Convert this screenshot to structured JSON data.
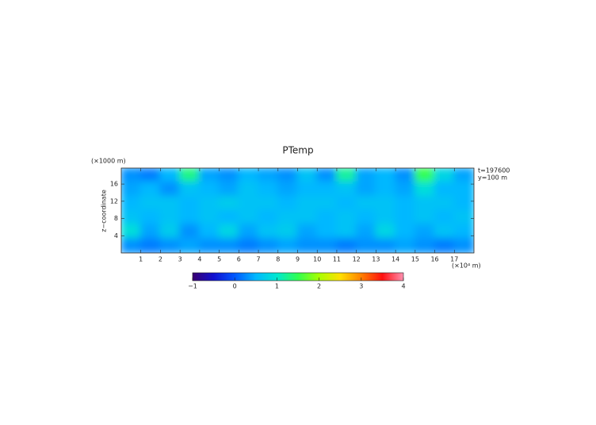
{
  "chart_data": {
    "type": "heatmap",
    "title": "PTemp",
    "y_unit": "(×1000 m)",
    "ylabel": "z−coordinate",
    "x_unit": "(×10⁴ m)",
    "annotations": [
      "t=197600",
      "y=100 m"
    ],
    "xlim": [
      0,
      18
    ],
    "xticks": [
      1,
      2,
      3,
      4,
      5,
      6,
      7,
      8,
      9,
      10,
      11,
      12,
      13,
      14,
      15,
      16,
      17
    ],
    "ylim": [
      0,
      19.7
    ],
    "yticks": [
      4,
      8,
      12,
      16
    ],
    "z": [
      [
        0.3,
        0.2,
        0.5,
        1.3,
        0.4,
        0.3,
        0.5,
        0.4,
        0.3,
        0.6,
        0.3,
        1.2,
        0.4,
        0.5,
        0.3,
        1.5,
        0.8,
        0.4
      ],
      [
        0.4,
        0.5,
        0.3,
        0.6,
        0.5,
        0.4,
        0.6,
        0.5,
        0.4,
        0.5,
        0.5,
        0.6,
        0.4,
        0.5,
        0.4,
        0.9,
        0.5,
        0.5
      ],
      [
        0.5,
        0.6,
        0.6,
        0.5,
        0.6,
        0.7,
        0.6,
        0.6,
        0.5,
        0.6,
        0.6,
        0.5,
        0.6,
        0.6,
        0.5,
        0.6,
        0.6,
        0.5
      ],
      [
        0.6,
        0.5,
        0.6,
        0.5,
        0.6,
        0.5,
        0.6,
        0.5,
        0.6,
        0.6,
        0.5,
        0.6,
        0.5,
        0.6,
        0.5,
        0.6,
        0.5,
        0.6
      ],
      [
        0.9,
        0.4,
        0.7,
        0.3,
        0.5,
        0.8,
        0.4,
        0.6,
        0.7,
        0.4,
        0.5,
        0.6,
        0.4,
        0.8,
        0.5,
        0.4,
        0.6,
        0.5
      ],
      [
        0.3,
        0.2,
        0.3,
        0.4,
        0.3,
        0.3,
        0.2,
        0.3,
        0.4,
        0.3,
        0.3,
        0.2,
        0.3,
        0.3,
        0.4,
        0.3,
        0.2,
        0.3
      ]
    ],
    "clim": [
      -1,
      4
    ],
    "cticks": [
      {
        "value": -1,
        "label": "−1"
      },
      0,
      1,
      2,
      3,
      4
    ],
    "colormap": [
      {
        "value": -1,
        "color": "#3a0070"
      },
      {
        "value": -0.5,
        "color": "#1010d0"
      },
      {
        "value": 0,
        "color": "#0058ff"
      },
      {
        "value": 0.5,
        "color": "#00b8ff"
      },
      {
        "value": 1,
        "color": "#00e8d0"
      },
      {
        "value": 1.5,
        "color": "#30ff50"
      },
      {
        "value": 2,
        "color": "#a8ff00"
      },
      {
        "value": 2.5,
        "color": "#ffe000"
      },
      {
        "value": 3,
        "color": "#ff8000"
      },
      {
        "value": 3.5,
        "color": "#ff1010"
      },
      {
        "value": 4,
        "color": "#ff90b0"
      }
    ]
  }
}
